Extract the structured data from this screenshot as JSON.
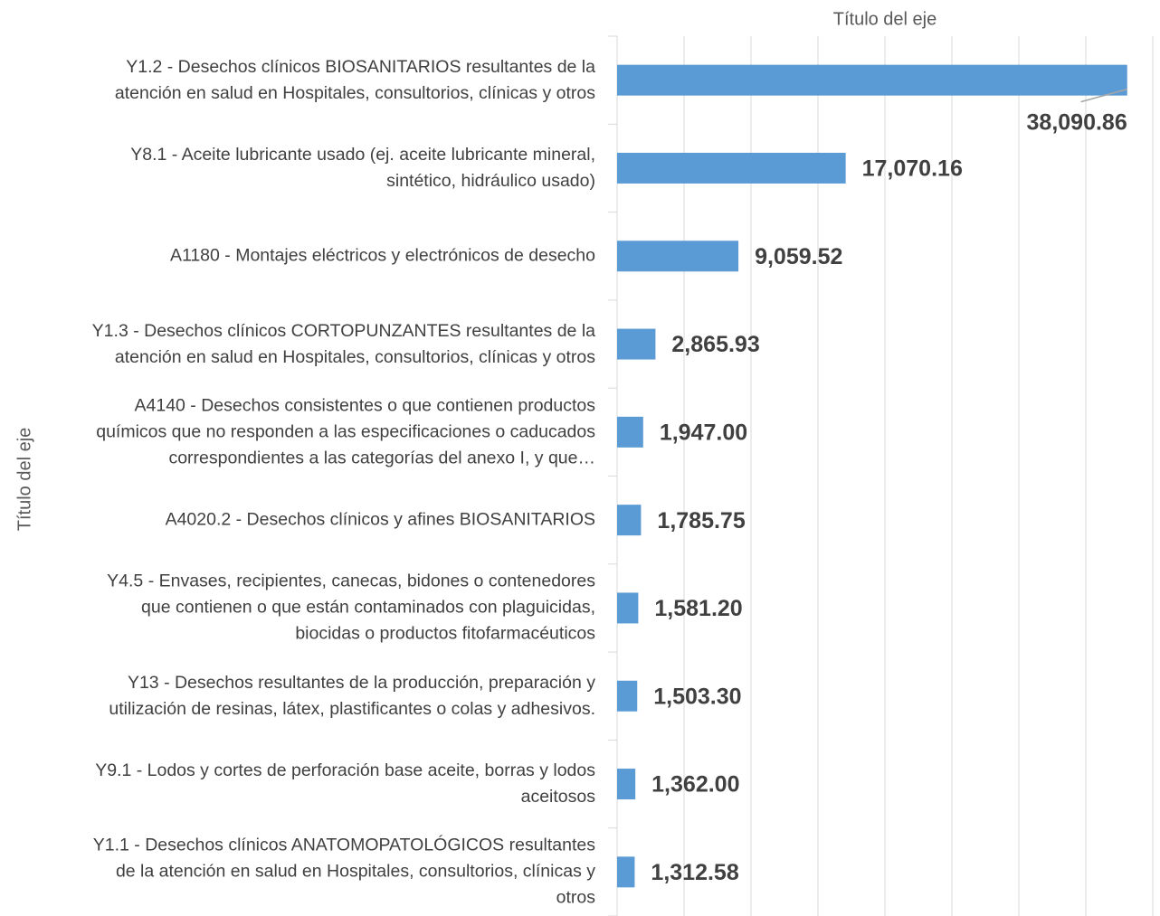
{
  "chart_data": {
    "type": "bar",
    "orientation": "horizontal",
    "x_axis_title": "Título del eje",
    "y_axis_title": "Título del eje",
    "categories": [
      "Y1.2 - Desechos clínicos BIOSANITARIOS resultantes de la\natención en salud en Hospitales, consultorios, clínicas y otros",
      "Y8.1 - Aceite lubricante usado (ej. aceite lubricante mineral,\nsintético, hidráulico usado)",
      "A1180 - Montajes eléctricos y electrónicos de desecho",
      "Y1.3 - Desechos clínicos CORTOPUNZANTES resultantes de la\natención en salud en Hospitales, consultorios, clínicas y otros",
      "A4140 - Desechos consistentes o que contienen productos\nquímicos que no responden a las especificaciones o caducados\ncorrespondientes a las categorías del anexo I, y que…",
      "A4020.2 - Desechos clínicos y afines BIOSANITARIOS",
      "Y4.5 - Envases, recipientes, canecas, bidones o contenedores\nque contienen o que están contaminados con plaguicidas,\nbiocidas o productos fitofarmacéuticos",
      "Y13 - Desechos resultantes de la producción, preparación y\nutilización de resinas, látex, plastificantes o colas y adhesivos.",
      "Y9.1 - Lodos y cortes de perforación base aceite, borras y lodos\naceitosos",
      "Y1.1 - Desechos clínicos ANATOMOPATOLÓGICOS resultantes\nde la atención en salud en Hospitales, consultorios, clínicas y\notros"
    ],
    "values": [
      38090.86,
      17070.16,
      9059.52,
      2865.93,
      1947.0,
      1785.75,
      1581.2,
      1503.3,
      1362.0,
      1312.58
    ],
    "value_labels": [
      "38,090.86",
      "17,070.16",
      "9,059.52",
      "2,865.93",
      "1,947.00",
      "1,785.75",
      "1,581.20",
      "1,503.30",
      "1,362.00",
      "1,312.58"
    ],
    "color": "#5b9bd5",
    "xlim": [
      0,
      40000
    ],
    "xticks": [
      0,
      5000,
      10000,
      15000,
      20000,
      25000,
      30000,
      35000,
      40000
    ],
    "grid": true
  }
}
